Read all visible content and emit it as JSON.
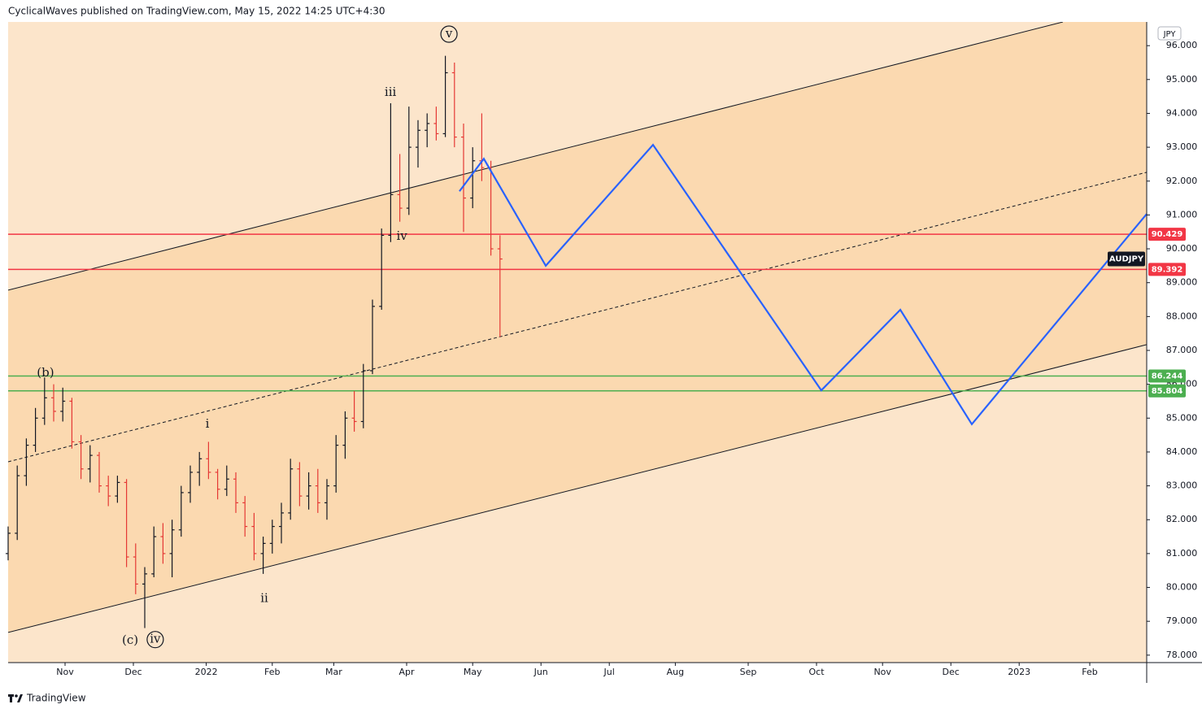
{
  "chart_data": {
    "type": "ohlc",
    "header": "CyclicalWaves published on TradingView.com, May 15, 2022 14:25 UTC+4:30",
    "footer": "TradingView",
    "symbol": "AUDJPY",
    "currency": "JPY",
    "up_color": "#131722",
    "down_color": "#e53935",
    "x": [
      0,
      4,
      8,
      12,
      16,
      20,
      24,
      28,
      32,
      36,
      40,
      44,
      48,
      52,
      56,
      60,
      64,
      68,
      72,
      76,
      80,
      84,
      88,
      92,
      96,
      100,
      104,
      108,
      112,
      116,
      120,
      124,
      128,
      132,
      136,
      140,
      144,
      148,
      152,
      156,
      160,
      164,
      168,
      172,
      176,
      180,
      184,
      188,
      192,
      196,
      200,
      204,
      208,
      212,
      216
    ],
    "open": [
      81.0,
      81.6,
      83.3,
      84.2,
      85.0,
      85.6,
      85.2,
      85.5,
      84.3,
      83.5,
      83.9,
      83.0,
      82.7,
      83.1,
      80.9,
      80.1,
      80.4,
      81.5,
      81.0,
      81.7,
      82.8,
      83.4,
      83.8,
      83.4,
      82.9,
      83.2,
      82.5,
      81.8,
      81.0,
      81.3,
      81.8,
      82.2,
      83.5,
      82.7,
      83.0,
      82.5,
      83.0,
      84.2,
      85.0,
      84.9,
      86.4,
      88.3,
      90.4,
      91.6,
      91.2,
      93.0,
      93.5,
      93.7,
      93.4,
      95.2,
      93.3,
      91.5,
      92.6,
      92.4,
      90.0
    ],
    "high": [
      81.8,
      83.6,
      84.4,
      85.3,
      86.2,
      86.0,
      85.9,
      85.6,
      84.5,
      84.2,
      84.0,
      83.3,
      83.3,
      83.2,
      81.3,
      80.6,
      81.8,
      81.9,
      82.0,
      83.0,
      83.6,
      84.0,
      84.3,
      83.5,
      83.6,
      83.4,
      82.7,
      82.2,
      81.5,
      82.0,
      82.5,
      83.8,
      83.7,
      83.4,
      83.5,
      83.2,
      84.5,
      85.2,
      85.8,
      86.6,
      88.5,
      90.6,
      94.3,
      92.8,
      94.2,
      93.8,
      94.0,
      94.2,
      95.7,
      95.5,
      93.7,
      93.0,
      94.0,
      92.6,
      90.4
    ],
    "low": [
      80.8,
      81.4,
      83.0,
      84.0,
      84.8,
      84.9,
      84.9,
      84.1,
      83.2,
      83.1,
      82.8,
      82.4,
      82.5,
      80.6,
      79.8,
      78.8,
      80.3,
      80.7,
      80.3,
      81.5,
      82.5,
      83.0,
      83.2,
      82.6,
      82.7,
      82.2,
      81.5,
      80.8,
      80.4,
      81.0,
      81.3,
      82.0,
      82.4,
      82.3,
      82.2,
      82.0,
      82.8,
      83.8,
      84.6,
      84.7,
      86.3,
      88.2,
      90.2,
      90.8,
      91.0,
      92.4,
      93.0,
      93.2,
      93.3,
      93.0,
      90.5,
      91.2,
      92.0,
      89.8,
      87.4
    ],
    "close": [
      81.6,
      83.3,
      84.2,
      85.0,
      85.6,
      85.2,
      85.5,
      84.3,
      83.5,
      83.9,
      83.0,
      82.7,
      83.1,
      80.9,
      80.1,
      80.4,
      81.5,
      81.0,
      81.7,
      82.8,
      83.4,
      83.8,
      83.4,
      82.9,
      83.2,
      82.5,
      81.8,
      81.0,
      81.3,
      81.8,
      82.2,
      83.5,
      82.7,
      83.0,
      82.5,
      83.0,
      84.2,
      85.0,
      84.9,
      86.4,
      88.3,
      90.4,
      91.6,
      91.2,
      93.0,
      93.5,
      93.7,
      93.4,
      95.2,
      93.3,
      91.5,
      92.6,
      92.4,
      90.0,
      89.7
    ],
    "xlim": [
      0,
      500
    ],
    "ylim": [
      77.78,
      96.7
    ],
    "xticks": [
      {
        "value": 25,
        "label": "Nov"
      },
      {
        "value": 55,
        "label": "Dec"
      },
      {
        "value": 87,
        "label": "2022"
      },
      {
        "value": 116,
        "label": "Feb"
      },
      {
        "value": 143,
        "label": "Mar"
      },
      {
        "value": 175,
        "label": "Apr"
      },
      {
        "value": 204,
        "label": "May"
      },
      {
        "value": 234,
        "label": "Jun"
      },
      {
        "value": 264,
        "label": "Jul"
      },
      {
        "value": 293,
        "label": "Aug"
      },
      {
        "value": 325,
        "label": "Sep"
      },
      {
        "value": 355,
        "label": "Oct"
      },
      {
        "value": 384,
        "label": "Nov"
      },
      {
        "value": 414,
        "label": "Dec"
      },
      {
        "value": 444,
        "label": "2023"
      },
      {
        "value": 475,
        "label": "Feb"
      }
    ],
    "yticks": [
      {
        "value": 78,
        "label": "78.000"
      },
      {
        "value": 79,
        "label": "79.000"
      },
      {
        "value": 80,
        "label": "80.000"
      },
      {
        "value": 81,
        "label": "81.000"
      },
      {
        "value": 82,
        "label": "82.000"
      },
      {
        "value": 83,
        "label": "83.000"
      },
      {
        "value": 84,
        "label": "84.000"
      },
      {
        "value": 85,
        "label": "85.000"
      },
      {
        "value": 86,
        "label": "86.000"
      },
      {
        "value": 87,
        "label": "87.000"
      },
      {
        "value": 88,
        "label": "88.000"
      },
      {
        "value": 89,
        "label": "89.000"
      },
      {
        "value": 90,
        "label": "90.000"
      },
      {
        "value": 91,
        "label": "91.000"
      },
      {
        "value": 92,
        "label": "92.000"
      },
      {
        "value": 93,
        "label": "93.000"
      },
      {
        "value": 94,
        "label": "94.000"
      },
      {
        "value": 95,
        "label": "95.000"
      },
      {
        "value": 96,
        "label": "96.000"
      }
    ],
    "hlines": [
      {
        "value": 90.429,
        "color": "#f23645"
      },
      {
        "value": 89.392,
        "color": "#f23645"
      },
      {
        "value": 86.244,
        "color": "#4caf50"
      },
      {
        "value": 85.804,
        "color": "#4caf50"
      }
    ],
    "channel_color": "#fbd9b0",
    "trendlines": [
      {
        "x": [
          0,
          463.2
        ],
        "y": [
          88.78,
          96.7
        ],
        "color": "#131722",
        "dashed": false
      },
      {
        "x": [
          0,
          500
        ],
        "y": [
          78.67,
          87.17
        ],
        "color": "#131722",
        "dashed": false
      },
      {
        "x": [
          0,
          500
        ],
        "y": [
          83.71,
          92.26
        ],
        "color": "#131722",
        "dashed": true
      }
    ],
    "projection": {
      "color": "#2962ff",
      "x": [
        198.2,
        208.9,
        236.1,
        283.2,
        357.1,
        391.8,
        423.2,
        500
      ],
      "values": [
        91.7,
        92.66,
        89.5,
        93.07,
        85.82,
        88.2,
        84.82,
        91.03
      ]
    },
    "annotations": [
      {
        "text": "(b)",
        "x": 16.4,
        "y": 86.33,
        "circled": false
      },
      {
        "text": "(c)",
        "x": 53.6,
        "y": 78.43,
        "circled": false
      },
      {
        "text": "iv",
        "x": 64.6,
        "y": 78.46,
        "circled": true
      },
      {
        "text": "i",
        "x": 87.5,
        "y": 84.82,
        "circled": false
      },
      {
        "text": "ii",
        "x": 112.5,
        "y": 79.66,
        "circled": false
      },
      {
        "text": "iii",
        "x": 167.9,
        "y": 94.61,
        "circled": false
      },
      {
        "text": "iv",
        "x": 172.9,
        "y": 90.36,
        "circled": false
      },
      {
        "text": "v",
        "x": 193.6,
        "y": 96.34,
        "circled": true
      }
    ]
  }
}
